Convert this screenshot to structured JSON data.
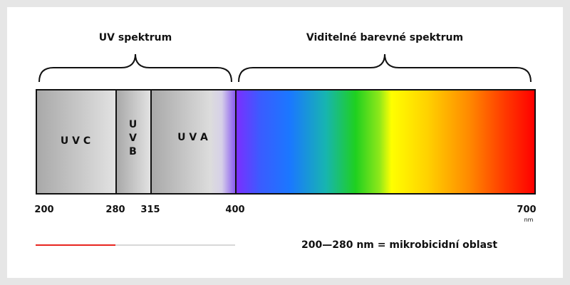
{
  "groups": [
    {
      "label": "UV spektrum"
    },
    {
      "label": "Viditelné barevné spektrum"
    }
  ],
  "bands": [
    {
      "label": "U V C"
    },
    {
      "label": "U V B"
    },
    {
      "label": "U V A"
    }
  ],
  "ticks": [
    200,
    280,
    315,
    400,
    700
  ],
  "unit": "nm",
  "legend": "200—280 nm = mikrobicidní oblast"
}
